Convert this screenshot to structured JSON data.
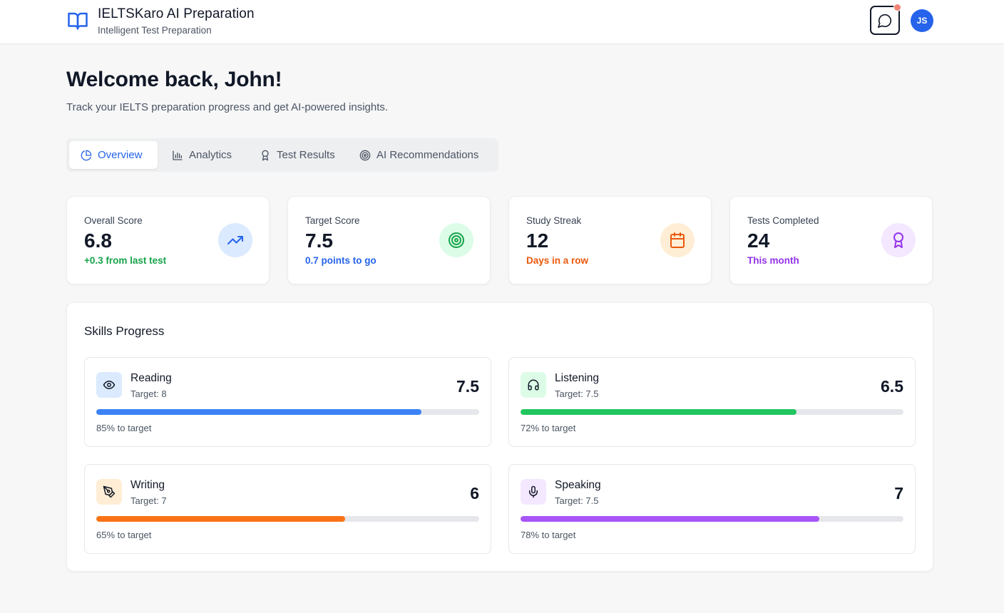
{
  "header": {
    "title": "IELTSKaro AI Preparation",
    "subtitle": "Intelligent Test Preparation",
    "avatar_initials": "JS",
    "brand_icon": "book-open-icon",
    "chat_icon": "message-circle-icon"
  },
  "welcome": {
    "title": "Welcome back, John!",
    "subtitle": "Track your IELTS preparation progress and get AI-powered insights."
  },
  "tabs": [
    {
      "label": "Overview",
      "icon": "pie-chart-icon",
      "active": true
    },
    {
      "label": "Analytics",
      "icon": "bar-chart-icon",
      "active": false
    },
    {
      "label": "Test Results",
      "icon": "award-icon",
      "active": false
    },
    {
      "label": "AI Recommendations",
      "icon": "target-icon",
      "active": false
    }
  ],
  "stats": [
    {
      "label": "Overall Score",
      "value": "6.8",
      "note": "+0.3 from last test",
      "note_color": "#16a34a",
      "icon": "trending-up-icon",
      "icon_bg": "#dbeafe",
      "icon_color": "#2563eb"
    },
    {
      "label": "Target Score",
      "value": "7.5",
      "note": "0.7 points to go",
      "note_color": "#2563eb",
      "icon": "target-icon",
      "icon_bg": "#dcfce7",
      "icon_color": "#16a34a"
    },
    {
      "label": "Study Streak",
      "value": "12",
      "note": "Days in a row",
      "note_color": "#ea580c",
      "icon": "calendar-icon",
      "icon_bg": "#ffedd5",
      "icon_color": "#ea580c"
    },
    {
      "label": "Tests Completed",
      "value": "24",
      "note": "This month",
      "note_color": "#9333ea",
      "icon": "award-icon",
      "icon_bg": "#f3e8ff",
      "icon_color": "#9333ea"
    }
  ],
  "skills": {
    "title": "Skills Progress",
    "items": [
      {
        "name": "Reading",
        "target": "Target: 8",
        "score": "7.5",
        "progress": 85,
        "progress_text": "85% to target",
        "color": "#3b82f6",
        "icon": "eye-icon",
        "icon_bg": "#dbeafe"
      },
      {
        "name": "Listening",
        "target": "Target: 7.5",
        "score": "6.5",
        "progress": 72,
        "progress_text": "72% to target",
        "color": "#22c55e",
        "icon": "headphones-icon",
        "icon_bg": "#dcfce7"
      },
      {
        "name": "Writing",
        "target": "Target: 7",
        "score": "6",
        "progress": 65,
        "progress_text": "65% to target",
        "color": "#f97316",
        "icon": "pen-tool-icon",
        "icon_bg": "#ffedd5"
      },
      {
        "name": "Speaking",
        "target": "Target: 7.5",
        "score": "7",
        "progress": 78,
        "progress_text": "78% to target",
        "color": "#a855f7",
        "icon": "mic-icon",
        "icon_bg": "#f3e8ff"
      }
    ]
  }
}
